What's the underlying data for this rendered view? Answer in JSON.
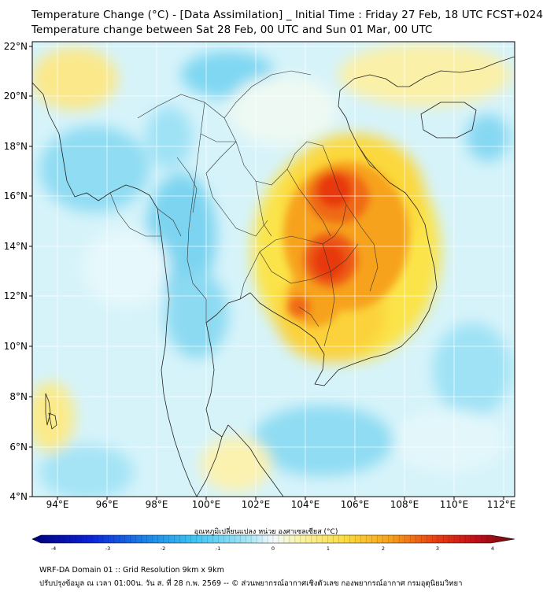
{
  "header": {
    "title": "Temperature Change (°C) - [Data Assimilation] _ Initial Time : Friday 27 Feb, 18 UTC FCST+024",
    "subtitle": "Temperature change between Sat 28 Feb, 00 UTC and Sun 01 Mar, 00 UTC"
  },
  "map": {
    "lon_range": [
      93,
      112.5
    ],
    "lat_range": [
      4,
      22
    ],
    "lon_ticks": [
      "94°E",
      "96°E",
      "98°E",
      "100°E",
      "102°E",
      "104°E",
      "106°E",
      "108°E",
      "110°E",
      "112°E"
    ],
    "lat_ticks": [
      "4°N",
      "6°N",
      "8°N",
      "10°N",
      "12°N",
      "14°N",
      "16°N",
      "18°N",
      "20°N",
      "22°N"
    ],
    "warm_core_color": "#e8380f",
    "warm_mid_color": "#f7a21b",
    "warm_edge_color": "#fbe44a",
    "cool_color": "#5fd3f3",
    "neutral_color": "#e6f8fb"
  },
  "colorbar": {
    "title": "อุณหภูมิเปลี่ยนแปลง หน่วย องศาเซลเซียส (°C)",
    "ticks": [
      "-4",
      "-3",
      "-2",
      "-1",
      "0",
      "1",
      "2",
      "3",
      "4"
    ],
    "range": [
      -4,
      4
    ]
  },
  "footer": {
    "line1": "WRF-DA Domain 01 :: Grid Resolution 9km x 9km",
    "line2": "ปรับปรุงข้อมูล ณ เวลา 01:00น. วัน ส. ที่ 28 ก.พ. 2569 -- © ส่วนพยากรณ์อากาศเชิงตัวเลข กองพยากรณ์อากาศ กรมอุตุนิยมวิทยา"
  }
}
